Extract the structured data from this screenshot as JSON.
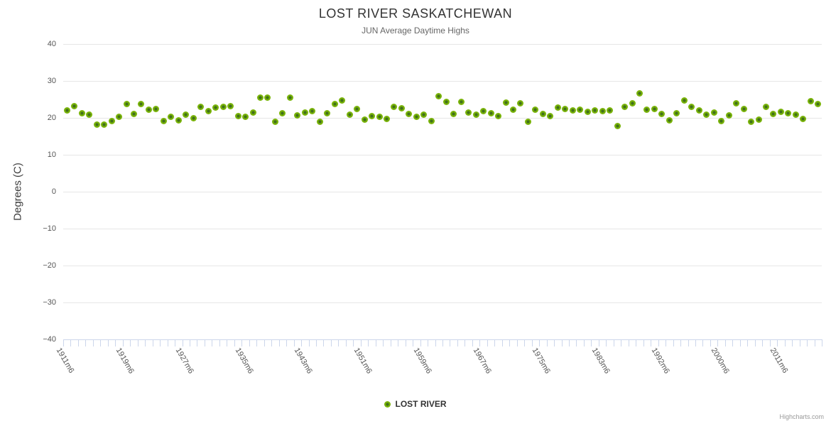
{
  "chart_data": {
    "type": "scatter",
    "title": "LOST RIVER SASKATCHEWAN",
    "subtitle": "JUN Average Daytime Highs",
    "xlabel": "",
    "ylabel": "Degrees (C)",
    "ylim": [
      -40,
      40
    ],
    "grid": true,
    "legend_position": "bottom-center",
    "marker_color": "#79b309",
    "marker_core_color": "#41711a",
    "gridline_color": "#e6e6e6",
    "axis_line_color": "#ccd6eb",
    "y_ticks": [
      {
        "value": 40,
        "label": "40"
      },
      {
        "value": 30,
        "label": "30"
      },
      {
        "value": 20,
        "label": "20"
      },
      {
        "value": 10,
        "label": "10"
      },
      {
        "value": 0,
        "label": "0"
      },
      {
        "value": -10,
        "label": "−10"
      },
      {
        "value": -20,
        "label": "−20"
      },
      {
        "value": -30,
        "label": "−30"
      },
      {
        "value": -40,
        "label": "−40"
      }
    ],
    "x_label_step": 8,
    "x_labels_shown": [
      "1911m6",
      "1919m6",
      "1927m6",
      "1935m6",
      "1943m6",
      "1951m6",
      "1959m6",
      "1967m6",
      "1975m6",
      "1983m6",
      "1992m6",
      "2000m6",
      "2011m6"
    ],
    "categories": [
      "1911m6",
      "1912m6",
      "1913m6",
      "1914m6",
      "1915m6",
      "1916m6",
      "1917m6",
      "1918m6",
      "1919m6",
      "1920m6",
      "1921m6",
      "1922m6",
      "1923m6",
      "1924m6",
      "1925m6",
      "1926m6",
      "1927m6",
      "1928m6",
      "1929m6",
      "1930m6",
      "1931m6",
      "1932m6",
      "1933m6",
      "1934m6",
      "1935m6",
      "1936m6",
      "1937m6",
      "1938m6",
      "1939m6",
      "1940m6",
      "1941m6",
      "1942m6",
      "1943m6",
      "1944m6",
      "1945m6",
      "1946m6",
      "1947m6",
      "1948m6",
      "1949m6",
      "1950m6",
      "1951m6",
      "1952m6",
      "1953m6",
      "1954m6",
      "1955m6",
      "1956m6",
      "1957m6",
      "1958m6",
      "1959m6",
      "1960m6",
      "1961m6",
      "1962m6",
      "1963m6",
      "1964m6",
      "1965m6",
      "1966m6",
      "1967m6",
      "1968m6",
      "1969m6",
      "1970m6",
      "1971m6",
      "1972m6",
      "1973m6",
      "1974m6",
      "1975m6",
      "1976m6",
      "1977m6",
      "1978m6",
      "1979m6",
      "1980m6",
      "1981m6",
      "1982m6",
      "1983m6",
      "1984m6",
      "1985m6",
      "1986m6",
      "1987m6",
      "1988m6",
      "1990m6",
      "1991m6",
      "1992m6",
      "1993m6",
      "1994m6",
      "1995m6",
      "1996m6",
      "1997m6",
      "1998m6",
      "1999m6",
      "2000m6",
      "2001m6",
      "2002m6",
      "2004m6",
      "2006m6",
      "2008m6",
      "2009m6",
      "2010m6",
      "2011m6",
      "2012m6",
      "2013m6",
      "2014m6",
      "2015m6",
      "2016m6"
    ],
    "series": [
      {
        "name": "LOST RIVER",
        "values": [
          22.0,
          23.2,
          21.3,
          20.8,
          18.1,
          18.2,
          19.2,
          20.3,
          23.8,
          21.0,
          23.7,
          22.3,
          22.4,
          19.1,
          20.3,
          19.4,
          20.8,
          20.0,
          23.0,
          21.9,
          22.7,
          22.9,
          23.2,
          20.5,
          20.3,
          21.5,
          25.4,
          25.4,
          18.9,
          21.2,
          25.4,
          20.6,
          21.4,
          21.8,
          18.9,
          21.3,
          23.8,
          24.7,
          20.8,
          22.4,
          19.5,
          20.5,
          20.3,
          19.8,
          22.9,
          22.6,
          21.0,
          20.3,
          20.8,
          19.2,
          25.8,
          24.3,
          21.1,
          24.3,
          21.4,
          20.8,
          21.9,
          21.2,
          20.4,
          24.2,
          22.3,
          24.0,
          19.0,
          22.3,
          21.0,
          20.5,
          22.8,
          22.5,
          22.1,
          22.3,
          21.7,
          22.1,
          21.9,
          22.1,
          17.8,
          22.9,
          24.0,
          26.6,
          22.3,
          22.4,
          21.1,
          19.4,
          21.3,
          24.7,
          23.0,
          22.1,
          20.8,
          21.5,
          19.2,
          20.6,
          24.0,
          22.4,
          18.9,
          19.5,
          22.9,
          21.0,
          21.7,
          21.3,
          20.8,
          19.8,
          24.5,
          23.7
        ]
      }
    ]
  },
  "credits": {
    "label": "Highcharts.com"
  }
}
